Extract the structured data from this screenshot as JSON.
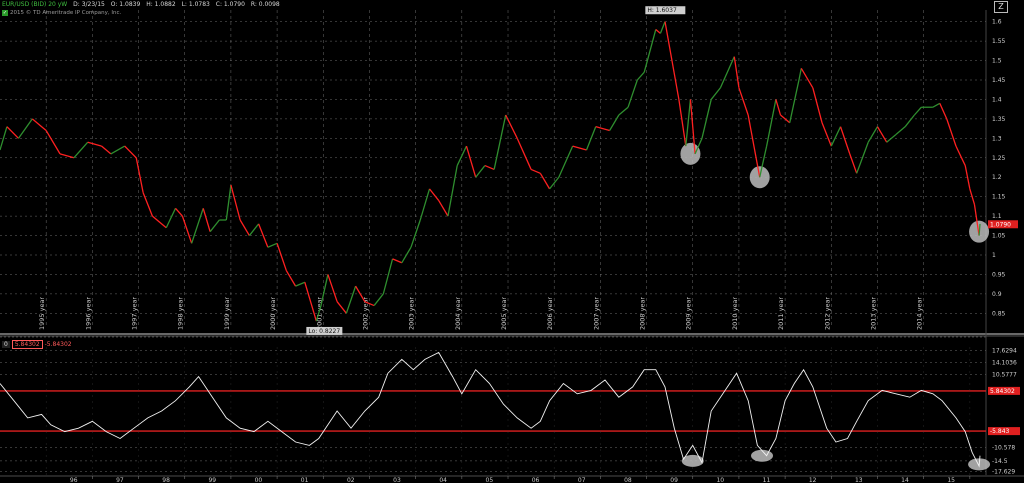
{
  "header": {
    "symbol": "EUR/USD (BID) 20 yW",
    "date": "D: 3/23/15",
    "open": "O: 1.0839",
    "high": "H: 1.0882",
    "low": "L: 1.0783",
    "close": "C: 1.0790",
    "range": "R: 0.0098",
    "copyright": "2015 © TD Ameritrade IP Company, Inc.",
    "copyright_icon": "checkmark-icon",
    "zoom_icon": "z-icon",
    "zoom_label": "Z"
  },
  "indicator_header": {
    "zero": "0",
    "value_a": "5.84302",
    "value_b": "-5.84302"
  },
  "colors": {
    "up": "#2f8f2f",
    "down": "#ff2020",
    "band": "#e02020",
    "grid": "#8a8a8a",
    "highlight": "#bdbdbd"
  },
  "chart_data": [
    {
      "type": "line",
      "name": "EUR/USD price",
      "years": [
        "1995 year",
        "1996 year",
        "1997 year",
        "1998 year",
        "1999 year",
        "2000 year",
        "2001 year",
        "2002 year",
        "2003 year",
        "2004 year",
        "2005 year",
        "2006 year",
        "2007 year",
        "2008 year",
        "2009 year",
        "2010 year",
        "2011 year",
        "2012 year",
        "2013 year",
        "2014 year"
      ],
      "y_ticks": [
        "1.6",
        "1.55",
        "1.5",
        "1.45",
        "1.4",
        "1.35",
        "1.3",
        "1.25",
        "1.2",
        "1.15",
        "1.1",
        "1.05",
        "1",
        "0.95",
        "0.9",
        "0.85"
      ],
      "ylim": [
        0.82,
        1.63
      ],
      "series": [
        {
          "values": [
            [
              1994.0,
              1.27
            ],
            [
              1994.15,
              1.33
            ],
            [
              1994.4,
              1.3
            ],
            [
              1994.7,
              1.35
            ],
            [
              1995.0,
              1.32
            ],
            [
              1995.3,
              1.26
            ],
            [
              1995.6,
              1.25
            ],
            [
              1995.9,
              1.29
            ],
            [
              1996.2,
              1.28
            ],
            [
              1996.4,
              1.26
            ],
            [
              1996.7,
              1.28
            ],
            [
              1996.95,
              1.25
            ],
            [
              1997.1,
              1.16
            ],
            [
              1997.3,
              1.1
            ],
            [
              1997.6,
              1.07
            ],
            [
              1997.8,
              1.12
            ],
            [
              1997.95,
              1.1
            ],
            [
              1998.15,
              1.03
            ],
            [
              1998.4,
              1.12
            ],
            [
              1998.55,
              1.06
            ],
            [
              1998.75,
              1.09
            ],
            [
              1998.9,
              1.09
            ],
            [
              1999.0,
              1.18
            ],
            [
              1999.2,
              1.09
            ],
            [
              1999.4,
              1.05
            ],
            [
              1999.6,
              1.08
            ],
            [
              1999.8,
              1.02
            ],
            [
              2000.0,
              1.03
            ],
            [
              2000.2,
              0.96
            ],
            [
              2000.4,
              0.92
            ],
            [
              2000.6,
              0.93
            ],
            [
              2000.85,
              0.83
            ],
            [
              2000.95,
              0.87
            ],
            [
              2001.1,
              0.95
            ],
            [
              2001.3,
              0.88
            ],
            [
              2001.5,
              0.85
            ],
            [
              2001.7,
              0.92
            ],
            [
              2001.9,
              0.88
            ],
            [
              2002.1,
              0.87
            ],
            [
              2002.3,
              0.9
            ],
            [
              2002.5,
              0.99
            ],
            [
              2002.7,
              0.98
            ],
            [
              2002.9,
              1.02
            ],
            [
              2003.1,
              1.09
            ],
            [
              2003.3,
              1.17
            ],
            [
              2003.5,
              1.14
            ],
            [
              2003.7,
              1.1
            ],
            [
              2003.9,
              1.23
            ],
            [
              2004.1,
              1.28
            ],
            [
              2004.3,
              1.2
            ],
            [
              2004.5,
              1.23
            ],
            [
              2004.7,
              1.22
            ],
            [
              2004.95,
              1.36
            ],
            [
              2005.2,
              1.3
            ],
            [
              2005.5,
              1.22
            ],
            [
              2005.7,
              1.21
            ],
            [
              2005.9,
              1.17
            ],
            [
              2006.1,
              1.2
            ],
            [
              2006.4,
              1.28
            ],
            [
              2006.7,
              1.27
            ],
            [
              2006.9,
              1.33
            ],
            [
              2007.2,
              1.32
            ],
            [
              2007.4,
              1.36
            ],
            [
              2007.6,
              1.38
            ],
            [
              2007.8,
              1.45
            ],
            [
              2007.95,
              1.47
            ],
            [
              2008.2,
              1.58
            ],
            [
              2008.3,
              1.57
            ],
            [
              2008.4,
              1.6
            ],
            [
              2008.55,
              1.5
            ],
            [
              2008.7,
              1.4
            ],
            [
              2008.85,
              1.28
            ],
            [
              2008.95,
              1.4
            ],
            [
              2009.05,
              1.26
            ],
            [
              2009.2,
              1.3
            ],
            [
              2009.4,
              1.4
            ],
            [
              2009.6,
              1.43
            ],
            [
              2009.9,
              1.51
            ],
            [
              2010.0,
              1.43
            ],
            [
              2010.2,
              1.36
            ],
            [
              2010.45,
              1.2
            ],
            [
              2010.6,
              1.28
            ],
            [
              2010.8,
              1.4
            ],
            [
              2010.9,
              1.36
            ],
            [
              2011.1,
              1.34
            ],
            [
              2011.3,
              1.45
            ],
            [
              2011.35,
              1.48
            ],
            [
              2011.6,
              1.43
            ],
            [
              2011.8,
              1.34
            ],
            [
              2012.0,
              1.28
            ],
            [
              2012.2,
              1.33
            ],
            [
              2012.4,
              1.26
            ],
            [
              2012.55,
              1.21
            ],
            [
              2012.8,
              1.29
            ],
            [
              2013.0,
              1.33
            ],
            [
              2013.2,
              1.29
            ],
            [
              2013.4,
              1.31
            ],
            [
              2013.6,
              1.33
            ],
            [
              2013.8,
              1.36
            ],
            [
              2013.95,
              1.38
            ],
            [
              2014.2,
              1.38
            ],
            [
              2014.35,
              1.39
            ],
            [
              2014.5,
              1.35
            ],
            [
              2014.7,
              1.28
            ],
            [
              2014.9,
              1.23
            ],
            [
              2015.0,
              1.17
            ],
            [
              2015.1,
              1.13
            ],
            [
              2015.2,
              1.05
            ],
            [
              2015.22,
              1.08
            ]
          ]
        }
      ],
      "annotations": [
        {
          "text": "H: 1.6037",
          "x": 2008.45,
          "y": 1.6037
        },
        {
          "text": "Lo: 0.8227",
          "x": 2000.85,
          "y": 0.8227
        },
        {
          "text": "1.0790",
          "x": 2015.22,
          "y": 1.079
        }
      ],
      "highlights": [
        {
          "x": 2008.95,
          "y": 1.26
        },
        {
          "x": 2010.45,
          "y": 1.2
        },
        {
          "x": 2015.2,
          "y": 1.06
        }
      ]
    },
    {
      "type": "line",
      "name": "oscillator",
      "x_ticks": [
        "96",
        "97",
        "98",
        "99",
        "00",
        "01",
        "02",
        "03",
        "04",
        "05",
        "06",
        "07",
        "08",
        "09",
        "10",
        "11",
        "12",
        "13",
        "14",
        "15"
      ],
      "y_ticks": [
        "17.6294",
        "14.1036",
        "10.5777",
        "5.84302",
        "-5.843",
        "-10.578",
        "-14.5",
        "-17.629"
      ],
      "ylim": [
        -18.6,
        18.6
      ],
      "bands": [
        5.84302,
        -5.84302
      ],
      "series": [
        {
          "values": [
            [
              1994.0,
              8
            ],
            [
              1994.3,
              3
            ],
            [
              1994.6,
              -2
            ],
            [
              1994.9,
              -1
            ],
            [
              1995.1,
              -4
            ],
            [
              1995.4,
              -6
            ],
            [
              1995.7,
              -5
            ],
            [
              1996.0,
              -3
            ],
            [
              1996.3,
              -6
            ],
            [
              1996.6,
              -8
            ],
            [
              1996.9,
              -5
            ],
            [
              1997.2,
              -2
            ],
            [
              1997.5,
              0
            ],
            [
              1997.8,
              3
            ],
            [
              1998.1,
              7
            ],
            [
              1998.3,
              10
            ],
            [
              1998.6,
              4
            ],
            [
              1998.9,
              -2
            ],
            [
              1999.2,
              -5
            ],
            [
              1999.5,
              -6
            ],
            [
              1999.8,
              -3
            ],
            [
              2000.1,
              -6
            ],
            [
              2000.4,
              -9
            ],
            [
              2000.7,
              -10
            ],
            [
              2000.9,
              -8
            ],
            [
              2001.1,
              -4
            ],
            [
              2001.3,
              0
            ],
            [
              2001.6,
              -5
            ],
            [
              2001.9,
              0
            ],
            [
              2002.2,
              4
            ],
            [
              2002.4,
              11
            ],
            [
              2002.7,
              15
            ],
            [
              2002.95,
              12
            ],
            [
              2003.2,
              15
            ],
            [
              2003.5,
              17
            ],
            [
              2003.8,
              10
            ],
            [
              2004.0,
              5
            ],
            [
              2004.3,
              12
            ],
            [
              2004.6,
              8
            ],
            [
              2004.9,
              2
            ],
            [
              2005.2,
              -2
            ],
            [
              2005.5,
              -5
            ],
            [
              2005.7,
              -3
            ],
            [
              2005.9,
              3
            ],
            [
              2006.2,
              8
            ],
            [
              2006.5,
              5
            ],
            [
              2006.8,
              6
            ],
            [
              2007.1,
              9
            ],
            [
              2007.4,
              4
            ],
            [
              2007.7,
              7
            ],
            [
              2007.95,
              12
            ],
            [
              2008.2,
              12
            ],
            [
              2008.4,
              7
            ],
            [
              2008.6,
              -5
            ],
            [
              2008.8,
              -14
            ],
            [
              2009.0,
              -10
            ],
            [
              2009.2,
              -15
            ],
            [
              2009.4,
              0
            ],
            [
              2009.7,
              6
            ],
            [
              2009.95,
              11
            ],
            [
              2010.2,
              3
            ],
            [
              2010.4,
              -10
            ],
            [
              2010.6,
              -13
            ],
            [
              2010.8,
              -8
            ],
            [
              2011.0,
              3
            ],
            [
              2011.2,
              8
            ],
            [
              2011.4,
              12
            ],
            [
              2011.6,
              7
            ],
            [
              2011.9,
              -5
            ],
            [
              2012.1,
              -9
            ],
            [
              2012.35,
              -8
            ],
            [
              2012.55,
              -3
            ],
            [
              2012.8,
              3
            ],
            [
              2013.1,
              6
            ],
            [
              2013.4,
              5
            ],
            [
              2013.7,
              4
            ],
            [
              2013.95,
              6
            ],
            [
              2014.2,
              5
            ],
            [
              2014.4,
              3
            ],
            [
              2014.7,
              -2
            ],
            [
              2014.9,
              -6
            ],
            [
              2015.05,
              -12
            ],
            [
              2015.2,
              -16
            ],
            [
              2015.22,
              -13
            ]
          ]
        }
      ],
      "highlights": [
        {
          "x": 2009.0,
          "y": -14.5
        },
        {
          "x": 2010.5,
          "y": -13.0
        },
        {
          "x": 2015.2,
          "y": -15.5
        }
      ]
    }
  ]
}
